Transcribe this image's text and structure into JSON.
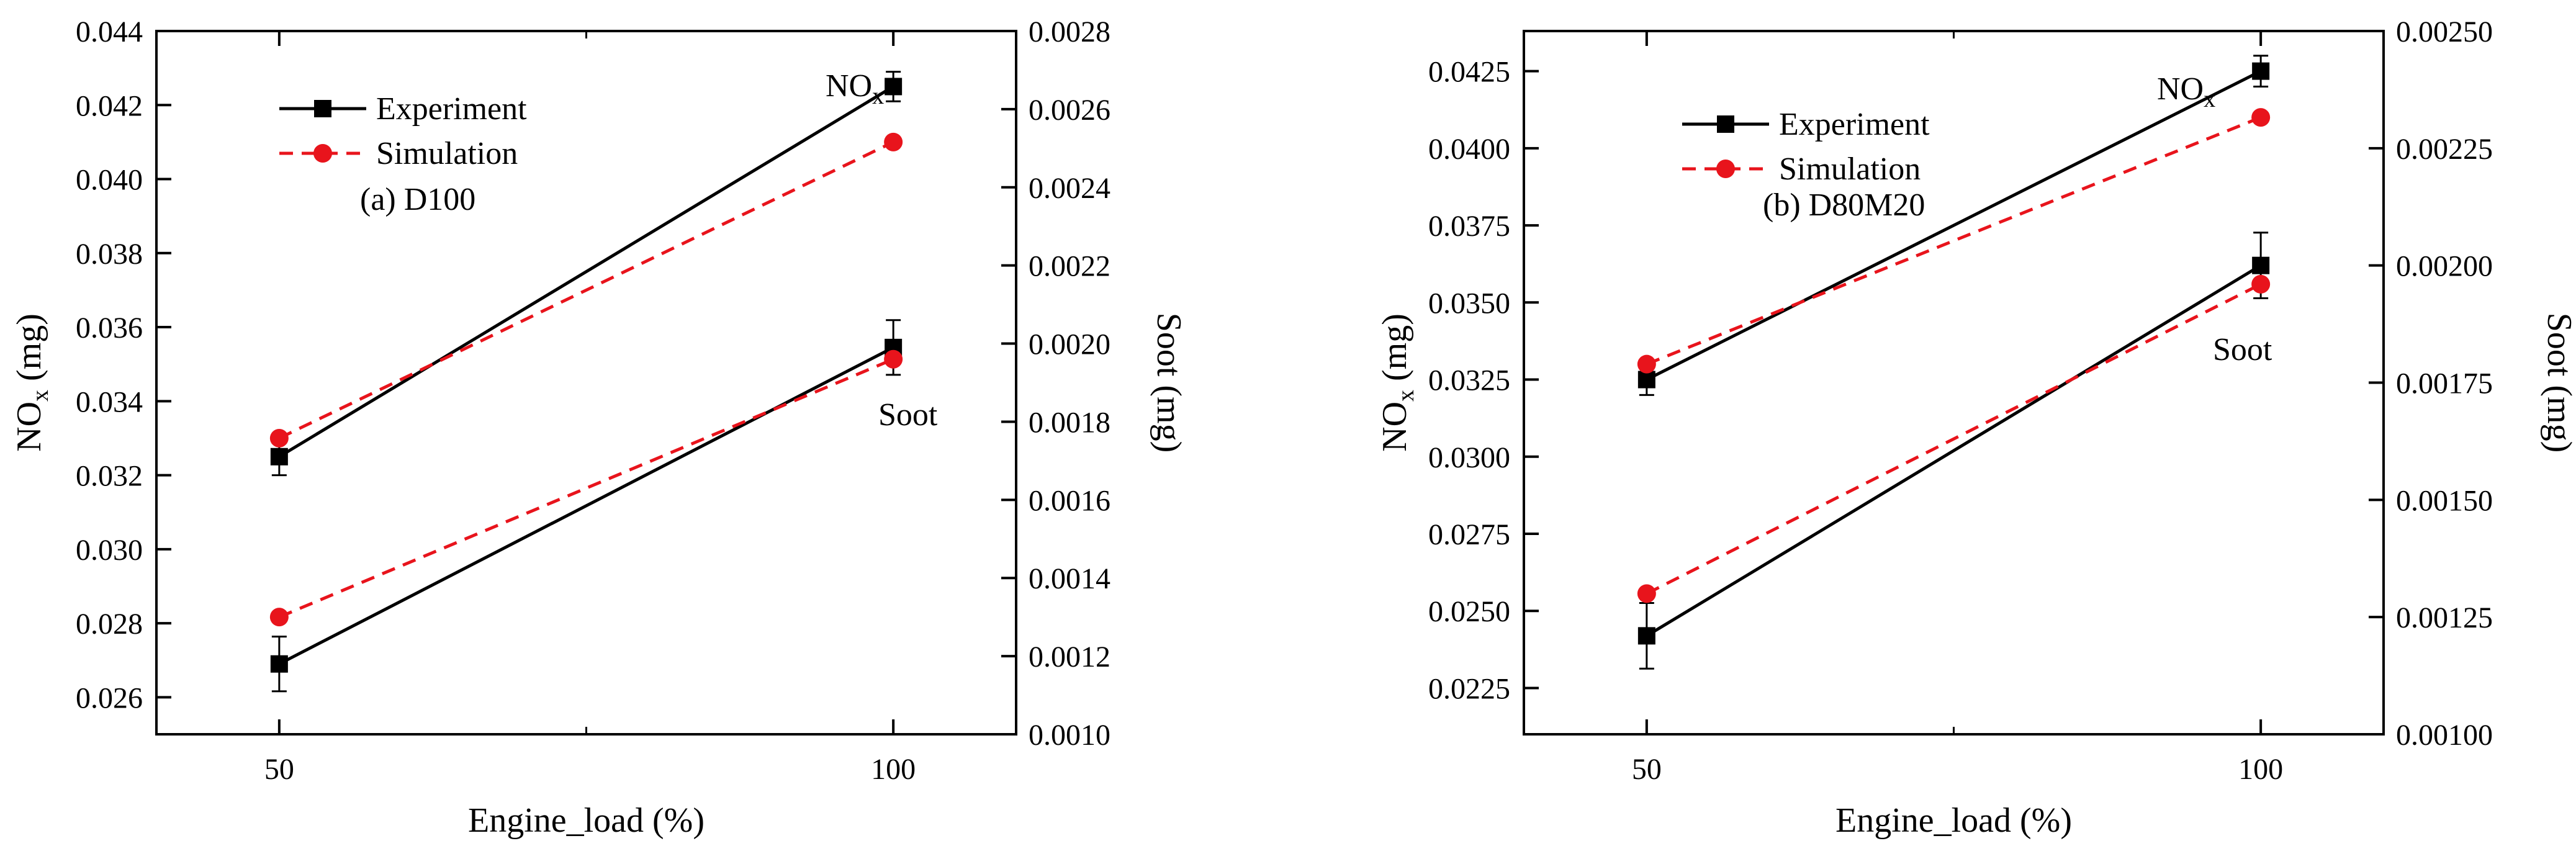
{
  "chart_data": [
    {
      "type": "line",
      "panel": "(a) D100",
      "categories": [
        50,
        100
      ],
      "xlabel": "Engine_load (%)",
      "xlim": [
        40,
        110
      ],
      "xticks": [
        "50",
        "100"
      ],
      "ylabel_left_main": "NO",
      "ylabel_left_sub": "x",
      "ylabel_left_tail": " (mg)",
      "ylabel_right": "Soot (mg)",
      "ylim_left": [
        0.025,
        0.044
      ],
      "ylim_right": [
        0.001,
        0.0028
      ],
      "yticks_left": [
        "0.026",
        "0.028",
        "0.030",
        "0.032",
        "0.034",
        "0.036",
        "0.038",
        "0.040",
        "0.042",
        "0.044"
      ],
      "yticks_right": [
        "0.0010",
        "0.0012",
        "0.0014",
        "0.0016",
        "0.0018",
        "0.0020",
        "0.0022",
        "0.0024",
        "0.0026",
        "0.0028"
      ],
      "legend": [
        "Experiment",
        "Simulation"
      ],
      "annotations": {
        "nox_main": "NO",
        "nox_sub": "x",
        "soot": "Soot"
      },
      "series": [
        {
          "name": "NOx Experiment",
          "axis": "left",
          "style": "experiment",
          "values": [
            0.0325,
            0.0425
          ],
          "err": [
            0.0005,
            0.0004
          ]
        },
        {
          "name": "NOx Simulation",
          "axis": "left",
          "style": "simulation",
          "values": [
            0.033,
            0.041
          ]
        },
        {
          "name": "Soot Experiment",
          "axis": "right",
          "style": "experiment",
          "values": [
            0.00118,
            0.00199
          ],
          "err": [
            7e-05,
            7e-05
          ]
        },
        {
          "name": "Soot Simulation",
          "axis": "right",
          "style": "simulation",
          "values": [
            0.0013,
            0.00196
          ]
        }
      ]
    },
    {
      "type": "line",
      "panel": "(b) D80M20",
      "categories": [
        50,
        100
      ],
      "xlabel": "Engine_load (%)",
      "xlim": [
        40,
        110
      ],
      "xticks": [
        "50",
        "100"
      ],
      "ylabel_left_main": "NO",
      "ylabel_left_sub": "x",
      "ylabel_left_tail": " (mg)",
      "ylabel_right": "Soot (mg)",
      "ylim_left": [
        0.021,
        0.0438
      ],
      "ylim_right": [
        0.001,
        0.0025
      ],
      "yticks_left": [
        "0.0225",
        "0.0250",
        "0.0275",
        "0.0300",
        "0.0325",
        "0.0350",
        "0.0375",
        "0.0400",
        "0.0425"
      ],
      "yticks_right": [
        "0.00100",
        "0.00125",
        "0.00150",
        "0.00175",
        "0.00200",
        "0.00225",
        "0.00250"
      ],
      "legend": [
        "Experiment",
        "Simulation"
      ],
      "annotations": {
        "nox_main": "NO",
        "nox_sub": "x",
        "soot": "Soot"
      },
      "series": [
        {
          "name": "NOx Experiment",
          "axis": "left",
          "style": "experiment",
          "values": [
            0.0325,
            0.0425
          ],
          "err": [
            0.0005,
            0.0005
          ]
        },
        {
          "name": "NOx Simulation",
          "axis": "left",
          "style": "simulation",
          "values": [
            0.033,
            0.041
          ]
        },
        {
          "name": "Soot Experiment",
          "axis": "right",
          "style": "experiment",
          "values": [
            0.00121,
            0.002
          ],
          "err": [
            7e-05,
            7e-05
          ]
        },
        {
          "name": "Soot Simulation",
          "axis": "right",
          "style": "simulation",
          "values": [
            0.0013,
            0.00196
          ]
        }
      ]
    }
  ],
  "colors": {
    "experiment": "#000000",
    "simulation": "#e8141c"
  }
}
